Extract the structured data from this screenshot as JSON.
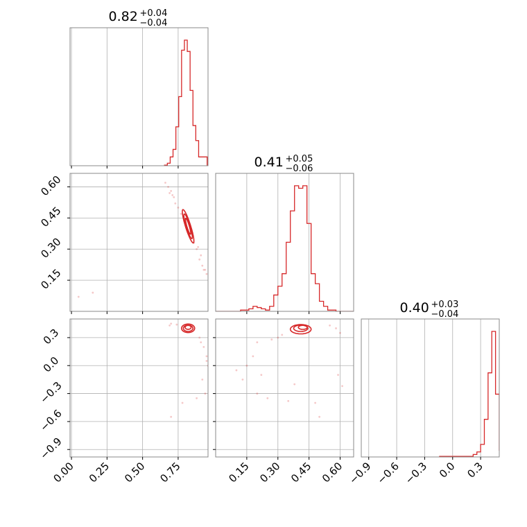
{
  "chart_data": {
    "type": "corner",
    "color": "#d62728",
    "grid": true,
    "variables": [
      {
        "title_value": "0.82",
        "title_plus": "+0.04",
        "title_minus": "−0.04",
        "range": [
          -0.01,
          0.96
        ],
        "ticks": [
          0.0,
          0.25,
          0.5,
          0.75
        ],
        "tick_labels": [
          "0.00",
          "0.25",
          "0.50",
          "0.75"
        ],
        "histogram": {
          "bin_edges": [
            0.654,
            0.674,
            0.694,
            0.714,
            0.734,
            0.754,
            0.774,
            0.794,
            0.814,
            0.834,
            0.854,
            0.874,
            0.894,
            0.914,
            0.934,
            0.954
          ],
          "counts": [
            0.005,
            0.02,
            0.07,
            0.13,
            0.31,
            0.55,
            0.92,
            1.0,
            0.91,
            0.6,
            0.32,
            0.2,
            0.07,
            0.07,
            0.07
          ]
        }
      },
      {
        "title_value": "0.41",
        "title_plus": "+0.05",
        "title_minus": "−0.06",
        "range": [
          0.0,
          0.665
        ],
        "ticks": [
          0.15,
          0.3,
          0.45,
          0.6
        ],
        "tick_labels": [
          "0.15",
          "0.30",
          "0.45",
          "0.60"
        ],
        "histogram": {
          "bin_edges": [
            0.0,
            0.02,
            0.04,
            0.06,
            0.08,
            0.1,
            0.12,
            0.14,
            0.16,
            0.18,
            0.2,
            0.22,
            0.24,
            0.26,
            0.28,
            0.3,
            0.32,
            0.34,
            0.36,
            0.38,
            0.4,
            0.42,
            0.44,
            0.46,
            0.48,
            0.5,
            0.52,
            0.54,
            0.56,
            0.58,
            0.6,
            0.62,
            0.64,
            0.665
          ],
          "counts": [
            0.0,
            0.0,
            0.0,
            0.0,
            0.0,
            0.0,
            0.01,
            0.01,
            0.02,
            0.04,
            0.03,
            0.02,
            0.01,
            0.04,
            0.13,
            0.2,
            0.3,
            0.55,
            0.8,
            1.0,
            0.98,
            1.0,
            0.7,
            0.3,
            0.22,
            0.08,
            0.04,
            0.01,
            0.01,
            0.0,
            0.0,
            0.0,
            0.0
          ]
        }
      },
      {
        "title_value": "0.40",
        "title_plus": "+0.03",
        "title_minus": "−0.04",
        "range": [
          -0.98,
          0.5
        ],
        "ticks": [
          -0.9,
          -0.6,
          -0.3,
          0.0,
          0.3
        ],
        "tick_labels": [
          "−0.9",
          "−0.6",
          "−0.3",
          "0.0",
          "0.3"
        ],
        "histogram": {
          "bin_edges": [
            -0.14,
            -0.1,
            -0.06,
            -0.02,
            0.02,
            0.06,
            0.1,
            0.14,
            0.18,
            0.22,
            0.26,
            0.3,
            0.34,
            0.38,
            0.42,
            0.46,
            0.5
          ],
          "counts": [
            0.005,
            0.005,
            0.005,
            0.005,
            0.005,
            0.005,
            0.005,
            0.005,
            0.005,
            0.02,
            0.04,
            0.1,
            0.3,
            0.67,
            1.0,
            0.5,
            0.05
          ]
        }
      }
    ],
    "pairs": [
      {
        "x_var": 0,
        "y_var": 1,
        "contours": [
          {
            "center": [
              0.82,
              0.41
            ],
            "sx": 0.055,
            "sy": 0.115,
            "rho": -0.97
          },
          {
            "center": [
              0.82,
              0.41
            ],
            "sx": 0.04,
            "sy": 0.085,
            "rho": -0.97
          },
          {
            "center": [
              0.82,
              0.41
            ],
            "sx": 0.025,
            "sy": 0.055,
            "rho": -0.97
          }
        ],
        "points": [
          [
            0.7,
            0.58
          ],
          [
            0.72,
            0.55
          ],
          [
            0.68,
            0.6
          ],
          [
            0.75,
            0.5
          ],
          [
            0.9,
            0.25
          ],
          [
            0.92,
            0.22
          ],
          [
            0.95,
            0.18
          ],
          [
            0.88,
            0.3
          ],
          [
            0.93,
            0.2
          ],
          [
            0.66,
            0.62
          ],
          [
            0.73,
            0.52
          ],
          [
            0.86,
            0.33
          ],
          [
            0.91,
            0.27
          ],
          [
            0.69,
            0.57
          ],
          [
            0.77,
            0.47
          ],
          [
            0.94,
            0.2
          ],
          [
            0.89,
            0.31
          ],
          [
            0.71,
            0.56
          ],
          [
            0.05,
            0.07
          ],
          [
            0.15,
            0.09
          ]
        ]
      },
      {
        "x_var": 0,
        "y_var": 2,
        "contours": [
          {
            "center": [
              0.82,
              0.4
            ],
            "sx": 0.07,
            "sy": 0.06,
            "rho": -0.6
          },
          {
            "center": [
              0.82,
              0.4
            ],
            "sx": 0.05,
            "sy": 0.045,
            "rho": -0.6
          },
          {
            "center": [
              0.82,
              0.41
            ],
            "sx": 0.03,
            "sy": 0.03,
            "rho": -0.6
          }
        ],
        "points": [
          [
            0.7,
            0.45
          ],
          [
            0.74,
            0.44
          ],
          [
            0.9,
            0.3
          ],
          [
            0.93,
            0.2
          ],
          [
            0.95,
            0.05
          ],
          [
            0.96,
            0.0
          ],
          [
            0.92,
            -0.15
          ],
          [
            0.78,
            -0.4
          ],
          [
            0.7,
            -0.55
          ],
          [
            0.94,
            -0.3
          ],
          [
            0.88,
            -0.35
          ],
          [
            0.95,
            0.1
          ],
          [
            0.69,
            0.43
          ],
          [
            0.91,
            0.25
          ],
          [
            0.8,
            0.42
          ],
          [
            0.86,
            0.39
          ]
        ]
      },
      {
        "x_var": 1,
        "y_var": 2,
        "contours": [
          {
            "center": [
              0.41,
              0.39
            ],
            "sx": 0.08,
            "sy": 0.06,
            "rho": 0.75
          },
          {
            "center": [
              0.41,
              0.4
            ],
            "sx": 0.055,
            "sy": 0.04,
            "rho": 0.75
          },
          {
            "center": [
              0.42,
              0.41
            ],
            "sx": 0.035,
            "sy": 0.025,
            "rho": 0.75
          }
        ],
        "points": [
          [
            0.2,
            0.25
          ],
          [
            0.15,
            0.0
          ],
          [
            0.13,
            -0.15
          ],
          [
            0.2,
            -0.3
          ],
          [
            0.25,
            -0.35
          ],
          [
            0.18,
            0.1
          ],
          [
            0.3,
            0.3
          ],
          [
            0.27,
            0.28
          ],
          [
            0.55,
            0.43
          ],
          [
            0.58,
            0.4
          ],
          [
            0.6,
            0.35
          ],
          [
            0.5,
            -0.55
          ],
          [
            0.48,
            -0.4
          ],
          [
            0.59,
            -0.1
          ],
          [
            0.61,
            -0.22
          ],
          [
            0.38,
            -0.2
          ],
          [
            0.35,
            -0.38
          ],
          [
            0.1,
            -0.05
          ],
          [
            0.22,
            -0.1
          ],
          [
            0.32,
            0.33
          ]
        ]
      }
    ]
  }
}
